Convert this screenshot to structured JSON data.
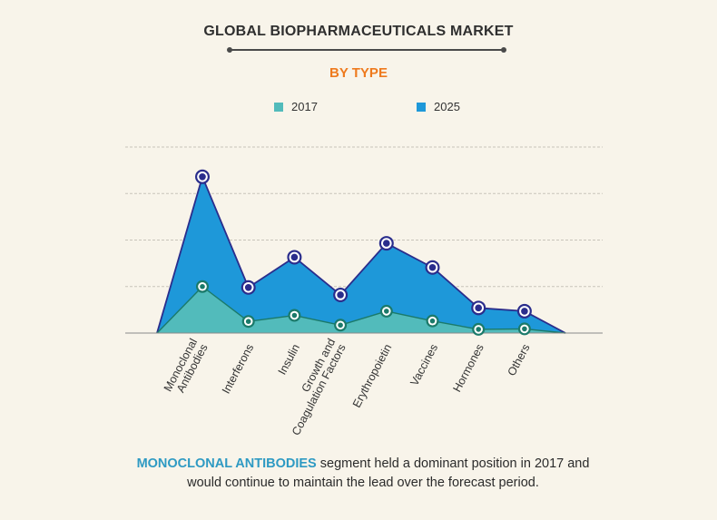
{
  "title": "GLOBAL BIOPHARMACEUTICALS MARKET",
  "subtitle": "BY TYPE",
  "colors": {
    "subtitle": "#ee7a1e",
    "series_2017_fill": "#52bbbb",
    "series_2025_fill": "#1e98d9",
    "series_2017_line": "#1b7a6a",
    "series_2025_line": "#2a2d8c",
    "highlight": "#2e9ac3",
    "grid": "#c8c4ba",
    "axis": "#8a8a8a"
  },
  "footer": {
    "highlight": "MONOCLONAL ANTIBODIES",
    "line1_rest": " segment held a dominant position in 2017 and",
    "line2": "would continue to maintain the lead over the forecast period."
  },
  "chart_data": {
    "type": "area",
    "title": "GLOBAL BIOPHARMACEUTICALS MARKET",
    "subtitle": "BY TYPE",
    "categories": [
      "Monoclonal Antibodies",
      "Interferons",
      "Insulin",
      "Growth and Coagulation Factors",
      "Erythropoietin",
      "Vaccines",
      "Hormones",
      "Others"
    ],
    "category_labels": [
      [
        "Monoclonal",
        "Antibodies"
      ],
      [
        "Interferons"
      ],
      [
        "Insulin"
      ],
      [
        "Growth and",
        "Coagulation Factors"
      ],
      [
        "Erythropoietin"
      ],
      [
        "Vaccines"
      ],
      [
        "Hormones"
      ],
      [
        "Others"
      ]
    ],
    "series": [
      {
        "name": "2017",
        "values": [
          1.0,
          0.25,
          0.38,
          0.17,
          0.47,
          0.26,
          0.08,
          0.09
        ]
      },
      {
        "name": "2025",
        "values": [
          3.36,
          0.98,
          1.63,
          0.82,
          1.93,
          1.41,
          0.54,
          0.47
        ]
      }
    ],
    "ylim": [
      0,
      4
    ],
    "grid": true,
    "legend_position": "top"
  }
}
